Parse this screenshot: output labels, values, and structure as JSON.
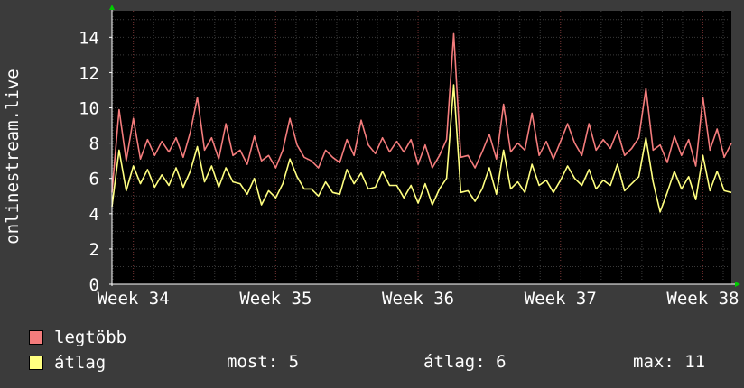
{
  "chart_data": {
    "type": "line",
    "ylabel": "onlinestream.live",
    "ylim": [
      0,
      15.5
    ],
    "yticks": [
      0,
      2,
      4,
      6,
      8,
      10,
      12,
      14
    ],
    "xlim": [
      33.85,
      38.2
    ],
    "xticks": [
      {
        "label": "Week 34",
        "value": 34
      },
      {
        "label": "Week 35",
        "value": 35
      },
      {
        "label": "Week 36",
        "value": 36
      },
      {
        "label": "Week 37",
        "value": 37
      },
      {
        "label": "Week 38",
        "value": 38
      }
    ],
    "grid": true,
    "colors": {
      "background": "#3b3b3b",
      "plot_background": "#000000",
      "grid": "#3a3a3a",
      "week_grid": "#6a2a2a",
      "axis": "#ffffff",
      "arrow": "#00cc00"
    },
    "series": [
      {
        "name": "legtöbb",
        "color": "#f47c7c",
        "x": [
          33.85,
          33.9,
          33.95,
          34.0,
          34.05,
          34.1,
          34.15,
          34.2,
          34.25,
          34.3,
          34.35,
          34.4,
          34.45,
          34.5,
          34.55,
          34.6,
          34.65,
          34.7,
          34.75,
          34.8,
          34.85,
          34.9,
          34.95,
          35.0,
          35.05,
          35.1,
          35.15,
          35.2,
          35.25,
          35.3,
          35.35,
          35.4,
          35.45,
          35.5,
          35.55,
          35.6,
          35.65,
          35.7,
          35.75,
          35.8,
          35.85,
          35.9,
          35.95,
          36.0,
          36.05,
          36.1,
          36.15,
          36.2,
          36.25,
          36.3,
          36.35,
          36.4,
          36.45,
          36.5,
          36.55,
          36.6,
          36.65,
          36.7,
          36.75,
          36.8,
          36.85,
          36.9,
          36.95,
          37.0,
          37.05,
          37.1,
          37.15,
          37.2,
          37.25,
          37.3,
          37.35,
          37.4,
          37.45,
          37.5,
          37.55,
          37.6,
          37.65,
          37.7,
          37.75,
          37.8,
          37.85,
          37.9,
          37.95,
          38.0,
          38.05,
          38.1,
          38.15,
          38.2
        ],
        "values": [
          5.2,
          9.9,
          7.0,
          9.4,
          7.1,
          8.2,
          7.3,
          8.1,
          7.5,
          8.3,
          7.2,
          8.6,
          10.6,
          7.6,
          8.3,
          7.1,
          9.1,
          7.3,
          7.6,
          6.8,
          8.4,
          7.0,
          7.3,
          6.6,
          7.6,
          9.4,
          7.9,
          7.2,
          7.0,
          6.6,
          7.6,
          7.2,
          6.9,
          8.2,
          7.3,
          9.3,
          7.9,
          7.4,
          8.3,
          7.5,
          8.1,
          7.5,
          8.2,
          6.8,
          7.9,
          6.6,
          7.3,
          8.2,
          14.2,
          7.2,
          7.3,
          6.6,
          7.5,
          8.5,
          7.1,
          10.2,
          7.5,
          8.0,
          7.6,
          9.7,
          7.3,
          8.1,
          7.1,
          8.1,
          9.1,
          8.0,
          7.3,
          9.1,
          7.6,
          8.2,
          7.7,
          8.7,
          7.3,
          7.7,
          8.3,
          11.1,
          7.6,
          7.9,
          6.9,
          8.4,
          7.3,
          8.2,
          6.7,
          10.6,
          7.6,
          8.8,
          7.2,
          8.0
        ]
      },
      {
        "name": "átlag",
        "color": "#ffff80",
        "x": [
          33.85,
          33.9,
          33.95,
          34.0,
          34.05,
          34.1,
          34.15,
          34.2,
          34.25,
          34.3,
          34.35,
          34.4,
          34.45,
          34.5,
          34.55,
          34.6,
          34.65,
          34.7,
          34.75,
          34.8,
          34.85,
          34.9,
          34.95,
          35.0,
          35.05,
          35.1,
          35.15,
          35.2,
          35.25,
          35.3,
          35.35,
          35.4,
          35.45,
          35.5,
          35.55,
          35.6,
          35.65,
          35.7,
          35.75,
          35.8,
          35.85,
          35.9,
          35.95,
          36.0,
          36.05,
          36.1,
          36.15,
          36.2,
          36.25,
          36.3,
          36.35,
          36.4,
          36.45,
          36.5,
          36.55,
          36.6,
          36.65,
          36.7,
          36.75,
          36.8,
          36.85,
          36.9,
          36.95,
          37.0,
          37.05,
          37.1,
          37.15,
          37.2,
          37.25,
          37.3,
          37.35,
          37.4,
          37.45,
          37.5,
          37.55,
          37.6,
          37.65,
          37.7,
          37.75,
          37.8,
          37.85,
          37.9,
          37.95,
          38.0,
          38.05,
          38.1,
          38.15,
          38.2
        ],
        "values": [
          4.4,
          7.6,
          5.3,
          6.7,
          5.7,
          6.5,
          5.5,
          6.2,
          5.6,
          6.6,
          5.5,
          6.4,
          7.8,
          5.8,
          6.7,
          5.5,
          6.6,
          5.8,
          5.7,
          5.1,
          6.0,
          4.5,
          5.3,
          4.9,
          5.7,
          7.1,
          6.1,
          5.4,
          5.4,
          5.0,
          5.8,
          5.2,
          5.1,
          6.5,
          5.7,
          6.3,
          5.4,
          5.5,
          6.4,
          5.6,
          5.6,
          4.9,
          5.6,
          4.6,
          5.7,
          4.5,
          5.4,
          6.0,
          11.3,
          5.2,
          5.3,
          4.7,
          5.4,
          6.6,
          5.1,
          7.6,
          5.4,
          5.8,
          5.2,
          6.8,
          5.6,
          5.9,
          5.2,
          5.9,
          6.7,
          6.0,
          5.6,
          6.5,
          5.4,
          5.9,
          5.6,
          6.8,
          5.3,
          5.7,
          6.1,
          8.3,
          5.8,
          4.1,
          5.2,
          6.4,
          5.4,
          6.1,
          4.8,
          7.3,
          5.3,
          6.4,
          5.3,
          5.2
        ]
      }
    ]
  },
  "legend": [
    {
      "label": "legtöbb",
      "color": "#f47c7c"
    },
    {
      "label": "átlag",
      "color": "#ffff80"
    }
  ],
  "stats": {
    "now": "most: 5",
    "avg": "átlag: 6",
    "max": "max: 11"
  }
}
